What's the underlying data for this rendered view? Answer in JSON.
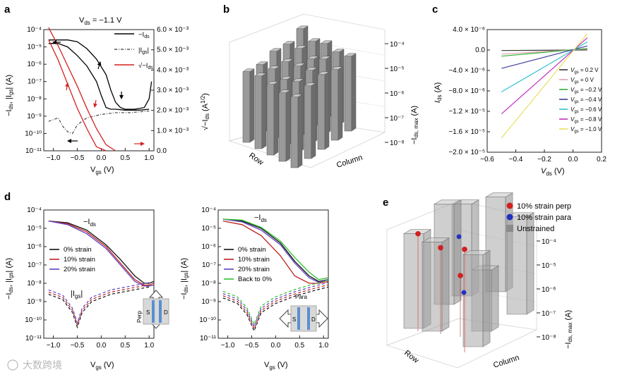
{
  "panels": {
    "a": {
      "letter": "a",
      "vds_label": "V",
      "vds_sub": "ds",
      "vds_value": " = −1.1 V",
      "ylabel_left_main": "−I",
      "ylabel_left_sub1": "ds",
      "ylabel_left_mid": ", |I",
      "ylabel_left_sub2": "gs",
      "ylabel_left_end": "| (A)",
      "ylabel_right": "√−I",
      "ylabel_right_sub": "ds",
      "ylabel_right_end": " (A",
      "ylabel_right_exp": "1/2",
      "ylabel_right_close": ")",
      "xlabel": "V",
      "xlabel_sub": "gs",
      "xlabel_end": " (V)",
      "legend": [
        {
          "text": "−I",
          "sub": "ds",
          "end": "",
          "color": "#000000",
          "dash": "none"
        },
        {
          "text": "|I",
          "sub": "gs",
          "end": "|",
          "color": "#555555",
          "dash": "4,2,1,2"
        },
        {
          "text": "√−I",
          "sub": "ds",
          "end": "",
          "color": "#d42020",
          "dash": "none"
        }
      ],
      "yticks_left": [
        "10⁻⁴",
        "10⁻⁵",
        "10⁻⁶",
        "10⁻⁷",
        "10⁻⁸",
        "10⁻⁹",
        "10⁻¹⁰",
        "10⁻¹¹"
      ],
      "yticks_right": [
        "6.0 × 10⁻³",
        "5.0 × 10⁻³",
        "4.0 × 10⁻³",
        "3.0 × 10⁻³",
        "2.0 × 10⁻³",
        "1.0 × 10⁻³",
        "0.0"
      ],
      "xticks": [
        "−1.0",
        "−0.5",
        "0.0",
        "0.5",
        "1.0"
      ]
    },
    "b": {
      "letter": "b",
      "zticks": [
        "10⁻⁴",
        "10⁻⁵",
        "10⁻⁶",
        "10⁻⁷",
        "10⁻⁸"
      ],
      "zlabel": "−I",
      "zlabel_sub": "ds, max",
      "zlabel_end": " (A)",
      "row_label": "Row",
      "col_label": "Column"
    },
    "c": {
      "letter": "c",
      "yticks": [
        "4.0 × 10⁻⁶",
        "0.0",
        "−4.0 × 10⁻⁶",
        "−8.0 × 10⁻⁶",
        "−1.2 × 10⁻⁵",
        "−1.6 × 10⁻⁵",
        "−2.0 × 10⁻⁵"
      ],
      "xticks": [
        "−0.6",
        "−0.4",
        "−0.2",
        "0.0",
        "0.2"
      ],
      "ylabel": "I",
      "ylabel_sub": "ds",
      "ylabel_end": " (A)",
      "xlabel": "V",
      "xlabel_sub": "ds",
      "xlabel_end": " (V)",
      "legend": [
        {
          "pre": "V",
          "sub": "gs",
          "value": " = 0.2 V",
          "color": "#333333"
        },
        {
          "pre": "V",
          "sub": "gs",
          "value": " = 0 V",
          "color": "#e0a0b0"
        },
        {
          "pre": "V",
          "sub": "gs",
          "value": " = −0.2 V",
          "color": "#30b030"
        },
        {
          "pre": "V",
          "sub": "gs",
          "value": " = −0.4 V",
          "color": "#4040a0"
        },
        {
          "pre": "V",
          "sub": "gs",
          "value": " = −0.6 V",
          "color": "#30c0d0"
        },
        {
          "pre": "V",
          "sub": "gs",
          "value": " = −0.8 V",
          "color": "#c030c0"
        },
        {
          "pre": "V",
          "sub": "gs",
          "value": " = −1.0 V",
          "color": "#e8e060"
        }
      ]
    },
    "d": {
      "letter": "d",
      "ylabel_left_main": "−I",
      "ylabel_left_sub1": "ds",
      "ylabel_left_mid": ", |I",
      "ylabel_left_sub2": "gs",
      "ylabel_left_end": "| (A)",
      "yticks": [
        "10⁻⁴",
        "10⁻⁵",
        "10⁻⁶",
        "10⁻⁷",
        "10⁻⁸",
        "10⁻⁹",
        "10⁻¹⁰",
        "10⁻¹¹"
      ],
      "xticks": [
        "−1.0",
        "−0.5",
        "0.0",
        "0.5",
        "1.0"
      ],
      "xlabel": "V",
      "xlabel_sub": "gs",
      "xlabel_end": " (V)",
      "ids_label": "−I",
      "ids_sub": "ds",
      "igs_label": "|I",
      "igs_sub": "gs",
      "igs_end": "|",
      "left_legend": [
        {
          "text": "0% strain",
          "color": "#111111"
        },
        {
          "text": "10% strain",
          "color": "#c02020"
        },
        {
          "text": "20% strain",
          "color": "#6040c0"
        }
      ],
      "right_legend": [
        {
          "text": "0% strain",
          "color": "#111111"
        },
        {
          "text": "10% strain",
          "color": "#c02020"
        },
        {
          "text": "20% strain",
          "color": "#6040c0"
        },
        {
          "text": "Back to 0%",
          "color": "#30c030"
        }
      ],
      "perp_label": "Perp",
      "para_label": "Para",
      "s_label": "S",
      "d_label": "D"
    },
    "e": {
      "letter": "e",
      "legend": [
        {
          "text": "10% strain perp",
          "color": "#d02020",
          "shape": "circle"
        },
        {
          "text": "10% strain para",
          "color": "#2030c0",
          "shape": "circle"
        },
        {
          "text": "Unstrained",
          "color": "#8a8a8a",
          "shape": "square"
        }
      ],
      "zticks": [
        "10⁻⁴",
        "10⁻⁵",
        "10⁻⁶",
        "10⁻⁷",
        "10⁻⁸"
      ],
      "zlabel": "−I",
      "zlabel_sub": "ds, max",
      "zlabel_end": " (A)",
      "row_label": "Row",
      "col_label": "Column"
    }
  },
  "watermark": "大数跨境",
  "chart_data": [
    {
      "panel": "a",
      "type": "line",
      "title": "V_ds = −1.1 V",
      "xlabel": "V_gs (V)",
      "ylabel": "−I_ds, |I_gs| (A)",
      "y2label": "√−I_ds (A^1/2)",
      "xlim": [
        -1.2,
        1.1
      ],
      "ylim_log": [
        -11,
        -4
      ],
      "y2lim": [
        0.0,
        0.006
      ],
      "series": [
        {
          "name": "−I_ds (forward)",
          "x": [
            -1.1,
            -0.9,
            -0.7,
            -0.5,
            -0.3,
            -0.1,
            0.1,
            0.2,
            0.3,
            0.4,
            0.5,
            0.7,
            0.9,
            1.0,
            1.05
          ],
          "log10_y": [
            -4.6,
            -4.6,
            -4.6,
            -4.7,
            -5.1,
            -5.7,
            -6.6,
            -7.5,
            -8.2,
            -8.5,
            -8.6,
            -8.6,
            -8.5,
            -8.0,
            -7.0
          ]
        },
        {
          "name": "−I_ds (reverse)",
          "x": [
            -1.1,
            -0.9,
            -0.7,
            -0.5,
            -0.3,
            -0.1,
            0.0,
            0.1,
            0.2,
            0.3,
            0.5,
            0.8,
            1.0
          ],
          "log10_y": [
            -4.8,
            -4.8,
            -5.0,
            -5.5,
            -6.1,
            -7.0,
            -7.8,
            -8.5,
            -8.6,
            -8.6,
            -8.65,
            -8.65,
            -8.6
          ]
        },
        {
          "name": "|I_gs|",
          "x": [
            -1.1,
            -0.9,
            -0.8,
            -0.7,
            -0.6,
            -0.5,
            -0.3,
            0.0,
            0.3,
            0.6,
            1.0
          ],
          "log10_y": [
            -9.3,
            -9.1,
            -9.6,
            -9.9,
            -10.0,
            -9.5,
            -9.1,
            -8.9,
            -8.8,
            -8.8,
            -8.7
          ]
        },
        {
          "name": "√−I_ds (forward)",
          "x": [
            -1.1,
            -0.9,
            -0.7,
            -0.5,
            -0.3,
            -0.1,
            0.1,
            0.3
          ],
          "y2": [
            0.0061,
            0.0052,
            0.0042,
            0.0032,
            0.0021,
            0.0011,
            0.0003,
            0.0
          ]
        },
        {
          "name": "√−I_ds (reverse)",
          "x": [
            -1.1,
            -0.9,
            -0.7,
            -0.5,
            -0.3,
            -0.1,
            0.1
          ],
          "y2": [
            0.0055,
            0.0045,
            0.0033,
            0.0021,
            0.0011,
            0.0002,
            0.0
          ]
        }
      ]
    },
    {
      "panel": "b",
      "type": "bar3d",
      "zlabel": "−I_ds, max (A)",
      "zlim_log": [
        -8,
        -4
      ],
      "grid": [
        [
          -4.3,
          -4.6,
          -4.4,
          -4.5,
          -4.4
        ],
        [
          -4.6,
          -4.5,
          -4.7,
          -4.4,
          -4.6
        ],
        [
          -4.5,
          -4.7,
          -4.6,
          -4.5,
          -4.4
        ],
        [
          -4.7,
          -4.6,
          -4.8,
          -4.6,
          -4.5
        ],
        [
          -4.6,
          -4.5,
          -4.6,
          -4.7,
          -4.6
        ]
      ]
    },
    {
      "panel": "c",
      "type": "line",
      "xlabel": "V_ds (V)",
      "ylabel": "I_ds (A)",
      "xlim": [
        -0.6,
        0.2
      ],
      "ylim": [
        -2e-05,
        4e-06
      ],
      "series": [
        {
          "name": "V_gs = 0.2 V",
          "x": [
            -0.5,
            0.1
          ],
          "y": [
            -1e-07,
            2e-08
          ]
        },
        {
          "name": "V_gs = 0 V",
          "x": [
            -0.5,
            0.1
          ],
          "y": [
            -8e-07,
            2e-07
          ]
        },
        {
          "name": "V_gs = −0.2 V",
          "x": [
            -0.5,
            0.1
          ],
          "y": [
            -1.2e-06,
            3e-07
          ]
        },
        {
          "name": "V_gs = −0.4 V",
          "x": [
            -0.5,
            0.1
          ],
          "y": [
            -3.6e-06,
            8e-07
          ]
        },
        {
          "name": "V_gs = −0.6 V",
          "x": [
            -0.5,
            0.1
          ],
          "y": [
            -8.2e-06,
            1.6e-06
          ]
        },
        {
          "name": "V_gs = −0.8 V",
          "x": [
            -0.5,
            0.1
          ],
          "y": [
            -1.25e-05,
            2.4e-06
          ]
        },
        {
          "name": "V_gs = −1.0 V",
          "x": [
            -0.5,
            0.1
          ],
          "y": [
            -1.72e-05,
            3.2e-06
          ]
        }
      ]
    },
    {
      "panel": "d-perp",
      "type": "line",
      "xlabel": "V_gs (V)",
      "ylabel": "−I_ds, |I_gs| (A)",
      "xlim": [
        -1.2,
        1.1
      ],
      "ylim_log": [
        -11,
        -4
      ],
      "series": [
        {
          "name": "0% strain",
          "x": [
            -1.1,
            -0.7,
            -0.3,
            0.1,
            0.4,
            0.7,
            0.9,
            1.0,
            1.1
          ],
          "log10_y": [
            -4.6,
            -4.7,
            -5.1,
            -5.9,
            -6.7,
            -7.6,
            -8.0,
            -8.0,
            -7.9
          ]
        },
        {
          "name": "10% strain",
          "x": [
            -1.1,
            -0.7,
            -0.3,
            0.1,
            0.4,
            0.7,
            0.9,
            1.0,
            1.1
          ],
          "log10_y": [
            -4.6,
            -4.75,
            -5.2,
            -6.0,
            -6.9,
            -7.8,
            -8.1,
            -8.1,
            -8.0
          ]
        },
        {
          "name": "20% strain",
          "x": [
            -1.1,
            -0.7,
            -0.3,
            0.1,
            0.4,
            0.7,
            0.9,
            1.0,
            1.1
          ],
          "log10_y": [
            -4.6,
            -4.8,
            -5.3,
            -6.1,
            -7.0,
            -7.9,
            -8.15,
            -8.15,
            -8.1
          ]
        },
        {
          "name": "|I_gs|",
          "x": [
            -1.1,
            -0.8,
            -0.6,
            -0.5,
            -0.4,
            -0.2,
            0.2,
            0.6,
            1.0
          ],
          "log10_y": [
            -8.6,
            -8.9,
            -9.6,
            -10.4,
            -9.6,
            -9.0,
            -8.6,
            -8.4,
            -8.2
          ]
        }
      ]
    },
    {
      "panel": "d-para",
      "type": "line",
      "xlabel": "V_gs (V)",
      "ylabel": "−I_ds, |I_gs| (A)",
      "xlim": [
        -1.2,
        1.1
      ],
      "ylim_log": [
        -11,
        -4
      ],
      "series": [
        {
          "name": "0% strain",
          "x": [
            -1.1,
            -0.7,
            -0.3,
            0.1,
            0.4,
            0.7,
            0.9,
            1.1
          ],
          "log10_y": [
            -4.5,
            -4.6,
            -5.0,
            -5.8,
            -6.8,
            -7.6,
            -7.9,
            -7.8
          ]
        },
        {
          "name": "10% strain",
          "x": [
            -1.1,
            -0.7,
            -0.3,
            0.1,
            0.4,
            0.7,
            0.9,
            1.1
          ],
          "log10_y": [
            -4.6,
            -4.8,
            -5.4,
            -6.5,
            -7.6,
            -8.0,
            -8.0,
            -7.9
          ]
        },
        {
          "name": "20% strain",
          "x": [
            -1.1,
            -0.7,
            -0.3,
            0.1,
            0.4,
            0.7,
            0.9,
            1.1
          ],
          "log10_y": [
            -4.5,
            -4.65,
            -5.1,
            -5.9,
            -6.9,
            -7.7,
            -7.95,
            -7.8
          ]
        },
        {
          "name": "Back to 0%",
          "x": [
            -1.1,
            -0.7,
            -0.3,
            0.1,
            0.4,
            0.7,
            0.9,
            1.1
          ],
          "log10_y": [
            -4.5,
            -4.55,
            -4.95,
            -5.7,
            -6.6,
            -7.4,
            -7.8,
            -7.7
          ]
        },
        {
          "name": "|I_gs|",
          "x": [
            -1.1,
            -0.8,
            -0.6,
            -0.45,
            -0.3,
            0.0,
            0.4,
            0.8,
            1.1
          ],
          "log10_y": [
            -8.8,
            -9.1,
            -9.7,
            -10.6,
            -9.6,
            -9.1,
            -8.7,
            -8.4,
            -8.2
          ]
        }
      ]
    },
    {
      "panel": "e",
      "type": "bar3d",
      "zlabel": "−I_ds, max (A)",
      "zlim_log": [
        -8,
        -4
      ],
      "unstrained": [
        -4.7,
        -4.6,
        -4.4,
        -4.5,
        -4.6,
        -4.8,
        -4.7,
        -5.8
      ],
      "strain_perp": [
        -4.5,
        -4.9,
        -4.3,
        -5.8
      ],
      "strain_para": [
        -4.3,
        -5.8
      ]
    }
  ]
}
